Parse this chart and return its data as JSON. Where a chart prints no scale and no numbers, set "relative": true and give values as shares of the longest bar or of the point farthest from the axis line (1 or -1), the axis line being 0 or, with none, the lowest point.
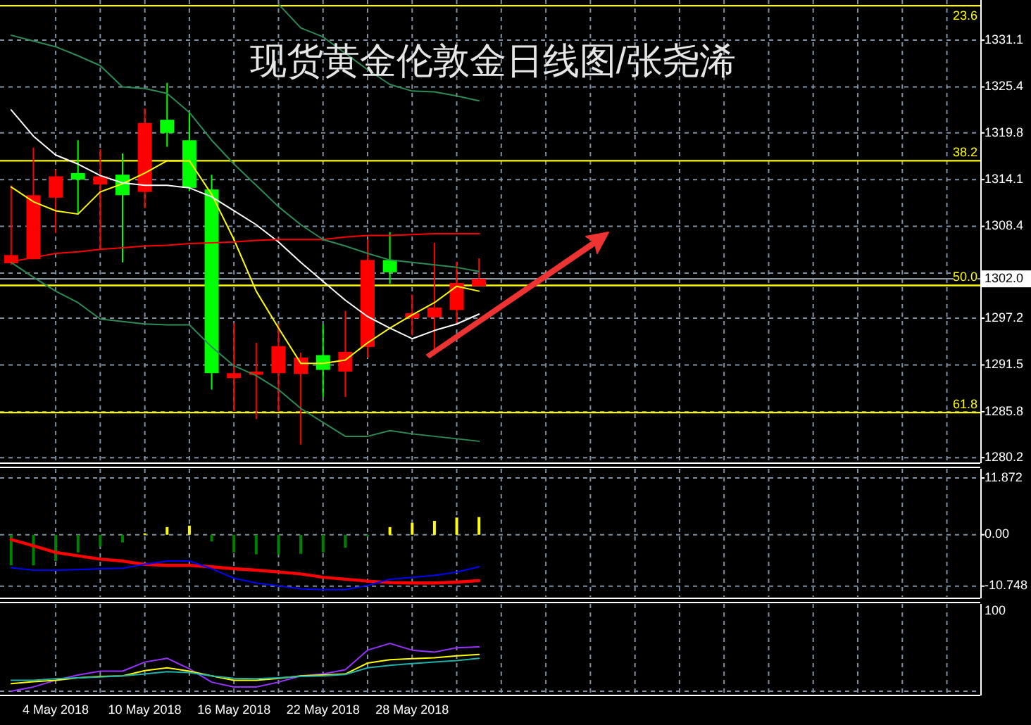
{
  "chart_data": [
    {
      "type": "candlestick",
      "title": "现货黄金伦敦金日线图/张尧浠",
      "categories": [
        null,
        null,
        null,
        null,
        null,
        null,
        null,
        null,
        null,
        null,
        null,
        null,
        null,
        null,
        null,
        null,
        null,
        null,
        null,
        null,
        null,
        null,
        null,
        null,
        null,
        null,
        null,
        null,
        null,
        null,
        null,
        null,
        null,
        null,
        null,
        null,
        null,
        null,
        null,
        null,
        null,
        null,
        null,
        null
      ],
      "ohlc": [
        [
          1303.9,
          1313.4,
          1303.7,
          1304.9
        ],
        [
          1304.4,
          1318.0,
          1304.4,
          1312.2
        ],
        [
          1311.9,
          1315.3,
          1307.6,
          1314.5
        ],
        [
          1314.9,
          1318.9,
          1310.0,
          1314.1
        ],
        [
          1313.5,
          1317.8,
          1305.7,
          1314.5
        ],
        [
          1314.7,
          1317.3,
          1304.0,
          1312.2
        ],
        [
          1312.6,
          1322.8,
          1310.6,
          1321.0
        ],
        [
          1321.4,
          1325.9,
          1318.1,
          1319.8
        ],
        [
          1318.9,
          1322.2,
          1312.7,
          1313.1
        ],
        [
          1312.9,
          1314.7,
          1288.5,
          1290.5
        ],
        [
          1289.9,
          1296.6,
          1285.9,
          1290.5
        ],
        [
          1290.3,
          1294.2,
          1284.9,
          1290.7
        ],
        [
          1290.5,
          1296.5,
          1285.8,
          1293.8
        ],
        [
          1290.4,
          1293.0,
          1281.8,
          1292.4
        ],
        [
          1292.7,
          1296.4,
          1287.6,
          1290.9
        ],
        [
          1290.7,
          1298.1,
          1287.6,
          1293.1
        ],
        [
          1293.7,
          1306.8,
          1292.4,
          1304.3
        ],
        [
          1304.3,
          1307.7,
          1301.4,
          1302.8
        ],
        [
          1297.2,
          1300.1,
          1295.1,
          1297.8
        ],
        [
          1297.3,
          1306.4,
          1292.7,
          1298.5
        ],
        [
          1298.2,
          1304.1,
          1296.5,
          1301.5
        ],
        [
          1301.1,
          1304.5,
          1301.1,
          1302.0
        ],
        null,
        null,
        null,
        null,
        null,
        null,
        null,
        null,
        null,
        null,
        null,
        null,
        null,
        null,
        null,
        null,
        null,
        null,
        null,
        null,
        null,
        null
      ],
      "colors": [
        "#ff0000",
        "#ff0000",
        "#ff0000",
        "#00ff00",
        "#ff0000",
        "#00ff00",
        "#ff0000",
        "#00ff00",
        "#00ff00",
        "#00ff00",
        "#ff0000",
        "#ff0000",
        "#ff0000",
        "#ff0000",
        "#00ff00",
        "#ff0000",
        "#ff0000",
        "#00ff00",
        "#ff0000",
        "#ff0000",
        "#ff0000",
        "#ff0000",
        null,
        null,
        null,
        null,
        null,
        null,
        null,
        null,
        null,
        null,
        null,
        null,
        null,
        null,
        null,
        null,
        null,
        null,
        null,
        null,
        null,
        null
      ],
      "series": [
        {
          "type": "line",
          "color": "#ffff00",
          "values": [
            1313.2,
            1311.4,
            1310.3,
            1309.9,
            1312.6,
            1313.6,
            1314.9,
            1316.4,
            1316.4,
            1312.3,
            1306.8,
            1300.5,
            1296.0,
            1291.7,
            1291.7,
            1292.1,
            1294.2,
            1296.0,
            1297.6,
            1299.1,
            1301.1,
            1300.5,
            null,
            null,
            null,
            null,
            null,
            null,
            null,
            null,
            null,
            null,
            null,
            null,
            null,
            null,
            null,
            null,
            null,
            null,
            null,
            null,
            null,
            null
          ]
        },
        {
          "type": "line",
          "color": "#ffffff",
          "values": [
            1322.6,
            1319.4,
            1317.1,
            1316.0,
            1314.6,
            1313.7,
            1313.4,
            1313.4,
            1313.1,
            1312.0,
            1310.3,
            1308.6,
            1306.5,
            1304.0,
            1301.7,
            1299.4,
            1297.4,
            1296.0,
            1294.7,
            1295.7,
            1296.5,
            1297.7,
            null,
            null,
            null,
            null,
            null,
            null,
            null,
            null,
            null,
            null,
            null,
            null,
            null,
            null,
            null,
            null,
            null,
            null,
            null,
            null,
            null,
            null
          ]
        },
        {
          "type": "line",
          "color": "#ff0000",
          "values": [
            1304.1,
            1304.6,
            1305.1,
            1305.3,
            1305.6,
            1305.8,
            1306.0,
            1306.1,
            1306.3,
            1306.4,
            1306.5,
            1306.7,
            1306.8,
            1306.8,
            1306.8,
            1307.1,
            1307.3,
            1307.3,
            1307.4,
            1307.5,
            1307.5,
            1307.5,
            null,
            null,
            null,
            null,
            null,
            null,
            null,
            null,
            null,
            null,
            null,
            null,
            null,
            null,
            null,
            null,
            null,
            null,
            null,
            null,
            null,
            null
          ]
        },
        {
          "type": "line",
          "color": "#2e8b57",
          "values": [
            null,
            null,
            null,
            null,
            null,
            null,
            null,
            null,
            null,
            null,
            null,
            null,
            1335.5,
            1332.6,
            1331.5,
            1329.5,
            1327.5,
            1325.7,
            1324.9,
            1324.8,
            1324.3,
            1323.7,
            null,
            null,
            null,
            null,
            null,
            null,
            null,
            null,
            null,
            null,
            null,
            null,
            null,
            null,
            null,
            null,
            null,
            null,
            null,
            null,
            null,
            null
          ]
        },
        {
          "type": "line",
          "color": "#2e8b57",
          "values": [
            1331.7,
            1331.0,
            1330.3,
            1329.2,
            1328.0,
            1325.4,
            1325.2,
            1324.6,
            1322.3,
            1318.9,
            1316.0,
            1313.4,
            1310.8,
            1308.6,
            1306.8,
            1306.0,
            1305.1,
            1304.3,
            1304.0,
            1303.7,
            1303.4,
            1302.9,
            null,
            null,
            null,
            null,
            null,
            null,
            null,
            null,
            null,
            null,
            null,
            null,
            null,
            null,
            null,
            null,
            null,
            null,
            null,
            null,
            null,
            null
          ]
        },
        {
          "type": "line",
          "color": "#2e8b57",
          "values": [
            1304.0,
            1302.2,
            1300.5,
            1299.1,
            1297.1,
            1296.8,
            1296.5,
            1296.4,
            1296.4,
            1293.7,
            1291.4,
            1290.2,
            1288.5,
            1286.2,
            1284.5,
            1282.8,
            1282.8,
            1283.5,
            1283.1,
            1282.8,
            1282.5,
            1282.2,
            null,
            null,
            null,
            null,
            null,
            null,
            null,
            null,
            null,
            null,
            null,
            null,
            null,
            null,
            null,
            null,
            null,
            null,
            null,
            null,
            null,
            null
          ]
        }
      ],
      "ylim": [
        1279.7,
        1336.0
      ],
      "yticks": [
        1280.2,
        1285.8,
        1291.5,
        1297.2,
        {
          "value": 1302.7,
          "label": null
        },
        1308.4,
        1314.1,
        1319.8,
        1325.4,
        1331.1
      ],
      "ref_lines": [
        {
          "axis": "y",
          "value": 1335.3,
          "color": "#ffff00"
        },
        {
          "axis": "y",
          "value": 1316.4,
          "color": "#ffff00"
        },
        {
          "axis": "y",
          "value": 1301.2,
          "color": "#ffff00"
        },
        {
          "axis": "y",
          "value": 1285.7,
          "color": "#ffff00"
        },
        {
          "axis": "y",
          "value": 1302.0,
          "label": "1302.0",
          "color": "#8c96a0"
        }
      ],
      "annotations": [
        {
          "text": "23.6",
          "y": 1335.3
        },
        {
          "text": "38.2",
          "y": 1316.4
        },
        {
          "text": "50.0",
          "y": 1301.2
        },
        {
          "text": "61.8",
          "y": 1285.7
        }
      ],
      "grid": true,
      "tick_labels": "y"
    },
    {
      "type": "bar",
      "categories": [
        null,
        null,
        null,
        null,
        null,
        null,
        null,
        null,
        null,
        null,
        null,
        null,
        null,
        null,
        null,
        null,
        null,
        null,
        null,
        null,
        null,
        null,
        null,
        null,
        null,
        null,
        null,
        null,
        null,
        null,
        null,
        null,
        null,
        null,
        null,
        null,
        null,
        null,
        null,
        null,
        null,
        null,
        null,
        null
      ],
      "series": [
        {
          "type": "bar",
          "colors": [
            "#008000",
            "#008000",
            "#008000",
            "#008000",
            "#008000",
            "#008000",
            "#ffff00",
            "#ffff00",
            "#ffff00",
            "#008000",
            "#008000",
            "#008000",
            "#008000",
            "#008000",
            "#008000",
            "#008000",
            "#008000",
            "#ffff00",
            "#ffff00",
            "#ffff00",
            "#ffff00",
            "#ffff00",
            null,
            null,
            null,
            null,
            null,
            null,
            null,
            null,
            null,
            null,
            null,
            null,
            null,
            null,
            null,
            null,
            null,
            null,
            null,
            null,
            null,
            null
          ],
          "values": [
            -6.4,
            -6.4,
            -5.5,
            -3.7,
            -2.5,
            -1.6,
            0.3,
            1.6,
            1.9,
            -1.4,
            -3.7,
            -4.1,
            -4.1,
            -4.0,
            -3.7,
            -2.7,
            -0.3,
            1.6,
            2.5,
            2.9,
            3.6,
            3.7,
            null,
            null,
            null,
            null,
            null,
            null,
            null,
            null,
            null,
            null,
            null,
            null,
            null,
            null,
            null,
            null,
            null,
            null,
            null,
            null,
            null,
            null
          ]
        },
        {
          "type": "line",
          "color": "#ff0000",
          "values": [
            -1.0,
            -2.3,
            -3.7,
            -4.4,
            -5.1,
            -5.5,
            -6.2,
            -6.4,
            -6.4,
            -6.7,
            -7.1,
            -7.4,
            -7.8,
            -8.2,
            -8.9,
            -9.3,
            -9.7,
            -10.0,
            -10.1,
            -10.1,
            -9.9,
            -9.6,
            null,
            null,
            null,
            null,
            null,
            null,
            null,
            null,
            null,
            null,
            null,
            null,
            null,
            null,
            null,
            null,
            null,
            null,
            null,
            null,
            null,
            null
          ]
        },
        {
          "type": "line",
          "color": "#0000ff",
          "values": [
            -6.9,
            -7.4,
            -7.4,
            -7.3,
            -7.1,
            -7.0,
            -6.2,
            -5.5,
            -5.5,
            -7.1,
            -9.1,
            -10.1,
            -10.7,
            -11.3,
            -11.5,
            -11.5,
            -10.6,
            -9.3,
            -8.9,
            -8.5,
            -7.8,
            -6.7,
            null,
            null,
            null,
            null,
            null,
            null,
            null,
            null,
            null,
            null,
            null,
            null,
            null,
            null,
            null,
            null,
            null,
            null,
            null,
            null,
            null,
            null
          ]
        }
      ],
      "ylim": [
        -13.0,
        13.8
      ],
      "yticks": [
        {
          "value": 11.872,
          "label": "11.872"
        },
        {
          "value": 0,
          "label": "0.00"
        },
        {
          "value": -10.748,
          "label": "-10.748"
        }
      ],
      "grid": true,
      "tick_labels": "y"
    },
    {
      "type": "line",
      "relative": true,
      "categories": [
        null,
        null,
        "4 May 2018",
        null,
        null,
        null,
        "10 May 2018",
        null,
        null,
        null,
        "16 May 2018",
        null,
        null,
        null,
        "22 May 2018",
        null,
        null,
        null,
        "28 May 2018",
        null,
        null,
        null,
        null,
        null,
        null,
        null,
        null,
        null,
        null,
        null,
        null,
        null,
        null,
        null,
        null,
        null,
        null,
        null,
        null,
        null,
        null,
        null,
        null,
        null
      ],
      "series": [
        {
          "color": "#9933ff",
          "values": [
            0,
            0.09,
            0.23,
            0.34,
            0.42,
            0.42,
            0.61,
            0.69,
            0.47,
            0.19,
            0.09,
            0.09,
            0.19,
            0.32,
            0.36,
            0.45,
            0.86,
            1,
            0.86,
            0.82,
            0.91,
            0.93,
            null,
            null,
            null,
            null,
            null,
            null,
            null,
            null,
            null,
            null,
            null,
            null,
            null,
            null,
            null,
            null,
            null,
            null,
            null,
            null,
            null,
            null
          ]
        },
        {
          "color": "#ffff00",
          "values": [
            0.16,
            0.2,
            0.23,
            0.28,
            0.31,
            0.32,
            0.43,
            0.49,
            0.42,
            0.32,
            0.23,
            0.23,
            0.27,
            0.32,
            0.34,
            0.36,
            0.59,
            0.66,
            0.68,
            0.7,
            0.74,
            0.77,
            null,
            null,
            null,
            null,
            null,
            null,
            null,
            null,
            null,
            null,
            null,
            null,
            null,
            null,
            null,
            null,
            null,
            null,
            null,
            null,
            null,
            null
          ]
        },
        {
          "color": "#20b2aa",
          "values": [
            0.23,
            0.23,
            0.26,
            0.28,
            0.3,
            0.32,
            0.36,
            0.41,
            0.39,
            0.32,
            0.27,
            0.26,
            0.28,
            0.31,
            0.32,
            0.35,
            0.49,
            0.54,
            0.58,
            0.61,
            0.64,
            0.69,
            null,
            null,
            null,
            null,
            null,
            null,
            null,
            null,
            null,
            null,
            null,
            null,
            null,
            null,
            null,
            null,
            null,
            null,
            null,
            null,
            null,
            null
          ]
        }
      ],
      "annotations": [
        "100"
      ],
      "grid": "x",
      "tick_labels": "x"
    }
  ]
}
